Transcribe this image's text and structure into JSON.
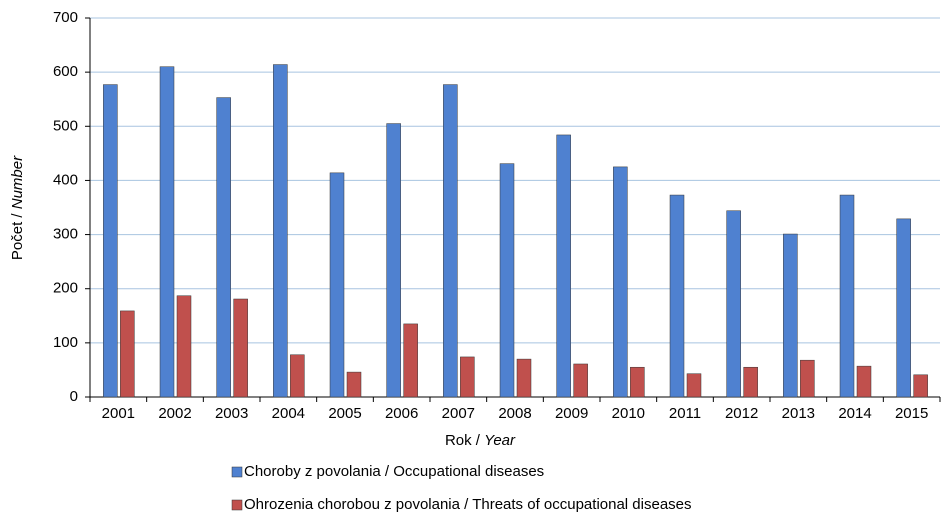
{
  "chart_data": {
    "type": "bar",
    "xlabel": {
      "text": "Rok / ",
      "italic": "Year"
    },
    "ylabel": {
      "text": "Počet / ",
      "italic": "Number"
    },
    "categories": [
      "2001",
      "2002",
      "2003",
      "2004",
      "2005",
      "2006",
      "2007",
      "2008",
      "2009",
      "2010",
      "2011",
      "2012",
      "2013",
      "2014",
      "2015"
    ],
    "series": [
      {
        "name": "Choroby z povolania  / Occupational diseases",
        "color": "#4f81d0",
        "values": [
          577,
          610,
          553,
          614,
          414,
          505,
          577,
          431,
          484,
          425,
          373,
          344,
          301,
          373,
          329
        ]
      },
      {
        "name": "Ohrozenia chorobou z povolania / Threats of occupational diseases",
        "color": "#c0504d",
        "values": [
          159,
          187,
          181,
          78,
          46,
          135,
          74,
          70,
          61,
          55,
          43,
          55,
          68,
          57,
          41
        ]
      }
    ],
    "ylim": [
      0,
      700
    ],
    "yticks": [
      0,
      100,
      200,
      300,
      400,
      500,
      600,
      700
    ],
    "grid": true,
    "legend": "bottom"
  }
}
